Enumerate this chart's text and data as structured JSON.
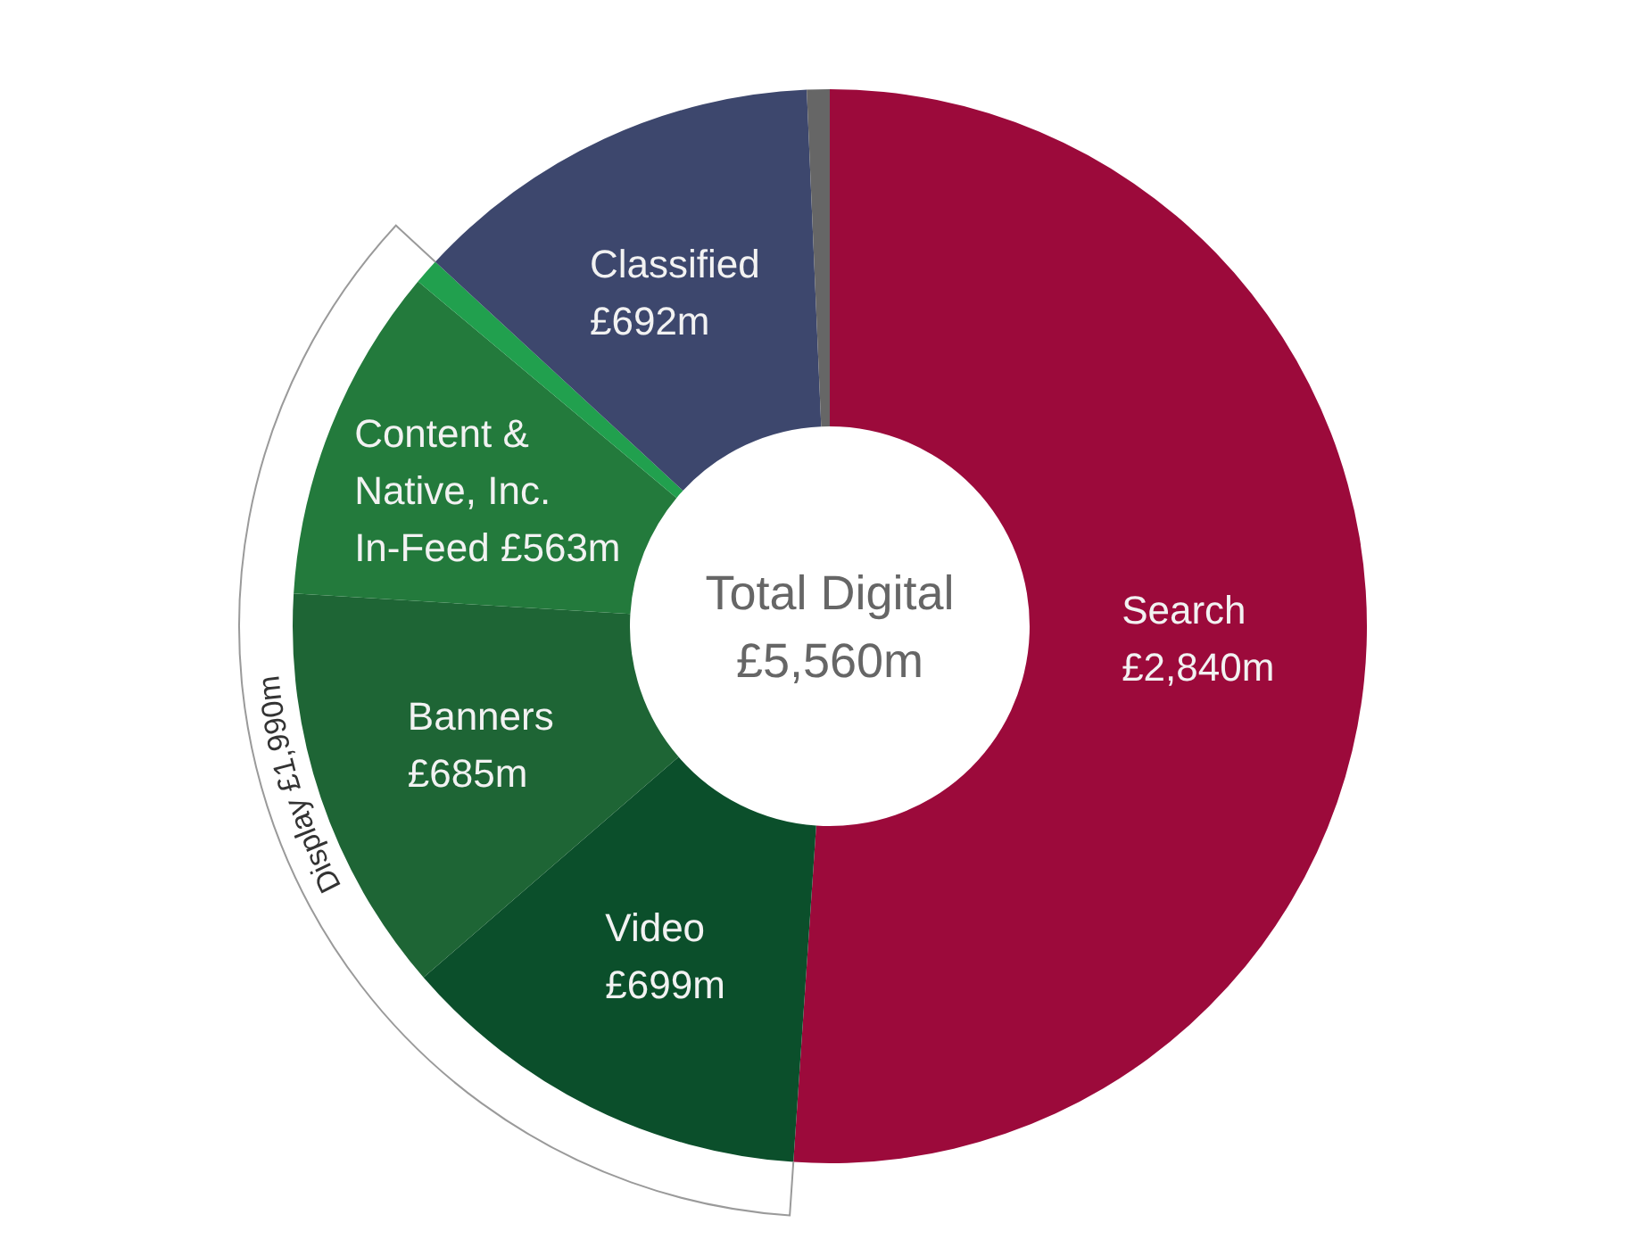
{
  "chart_data": {
    "type": "donut",
    "categories": [
      "Search",
      "Video",
      "Banners",
      "Content & Native, Inc. In-Feed",
      null,
      "Classified",
      null
    ],
    "values": [
      2840,
      699,
      685,
      563,
      43,
      692,
      38
    ],
    "colors": [
      "#9c0a3b",
      "#0b4f2b",
      "#1e6535",
      "#237a3c",
      "#21a04e",
      "#3d476d",
      "#666666"
    ],
    "value_labels": [
      "£2,840m",
      "£699m",
      "£685m",
      "£563m",
      null,
      "£692m",
      null
    ],
    "annotations": [
      "Total Digital £5,560m",
      "Display £1,990m"
    ]
  }
}
